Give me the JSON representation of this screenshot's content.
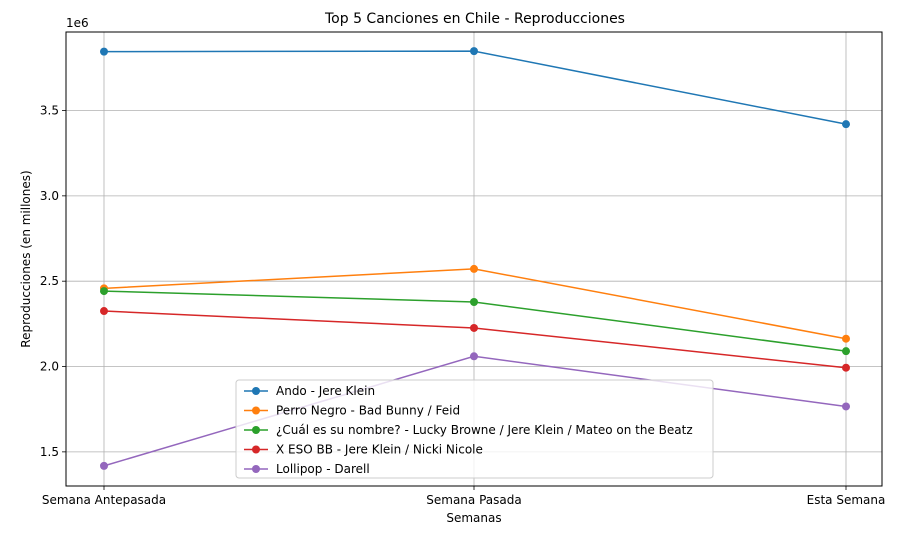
{
  "chart_data": {
    "type": "line",
    "title": "Top 5 Canciones en Chile - Reproducciones",
    "xlabel": "Semanas",
    "ylabel": "Reproducciones (en millones)",
    "y_offset_label": "1e6",
    "categories": [
      "Semana Antepasada",
      "Semana Pasada",
      "Esta Semana"
    ],
    "ylim": [
      1.3,
      3.96
    ],
    "yticks": [
      1.5,
      2.0,
      2.5,
      3.0,
      3.5
    ],
    "ytick_labels": [
      "1.5",
      "2.0",
      "2.5",
      "3.0",
      "3.5"
    ],
    "grid": true,
    "legend_position": "lower-center",
    "series": [
      {
        "name": "Ando - Jere Klein",
        "color": "#1f77b4",
        "values": [
          3.845,
          3.848,
          3.42
        ]
      },
      {
        "name": "Perro Negro - Bad Bunny / Feid",
        "color": "#ff7f0e",
        "values": [
          2.458,
          2.572,
          2.163
        ]
      },
      {
        "name": "¿Cuál es su nombre? - Lucky Browne / Jere Klein / Mateo on the Beatz",
        "color": "#2ca02c",
        "values": [
          2.442,
          2.378,
          2.09
        ]
      },
      {
        "name": "X ESO BB - Jere Klein / Nicki Nicole",
        "color": "#d62728",
        "values": [
          2.325,
          2.226,
          1.993
        ]
      },
      {
        "name": "Lollipop - Darell",
        "color": "#9467bd",
        "values": [
          1.418,
          2.06,
          1.766
        ]
      }
    ]
  }
}
